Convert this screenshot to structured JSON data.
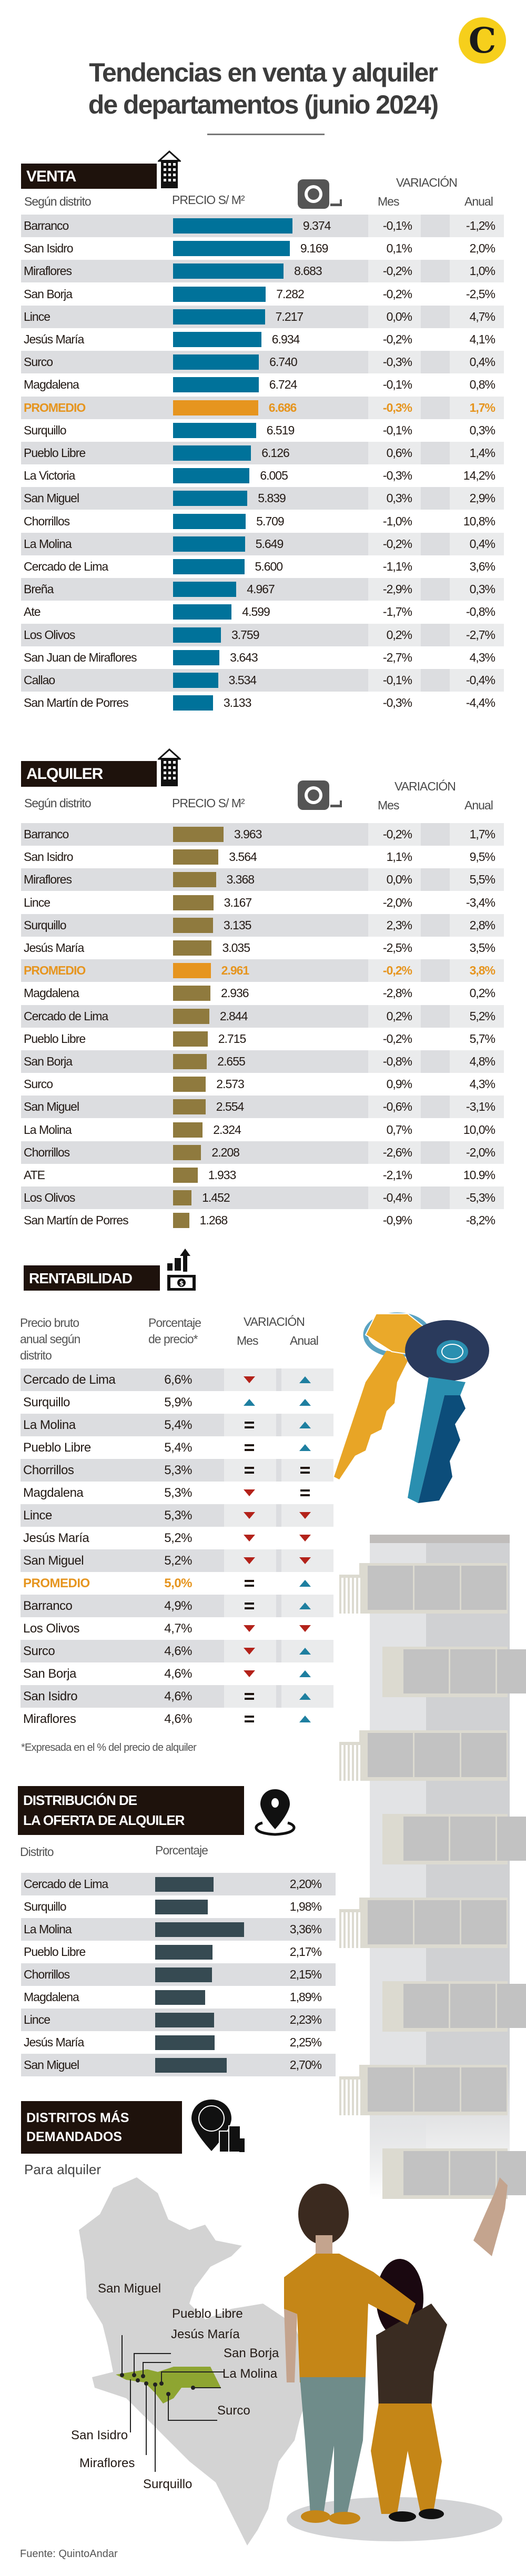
{
  "header": {
    "title_line1": "Tendencias en venta y alquiler",
    "title_line2": "de departamentos (junio 2024)",
    "logo_letter": "C"
  },
  "colors": {
    "venta_bar": "#00729a",
    "alquiler_bar": "#8f7a3e",
    "promedio": "#e6951f",
    "distribucion_bar": "#364a52",
    "up": "#1e7fa0",
    "down": "#b3221a"
  },
  "venta": {
    "title": "VENTA",
    "col_district": "Según distrito",
    "col_price": "PRECIO S/ M²",
    "col_variation": "VARIACIÓN",
    "col_month": "Mes",
    "col_year": "Anual",
    "rows": [
      {
        "district": "Barranco",
        "price": "9.374",
        "mes": "-0,1%",
        "anual": "-1,2%"
      },
      {
        "district": "San Isidro",
        "price": "9.169",
        "mes": "0,1%",
        "anual": "2,0%"
      },
      {
        "district": "Miraflores",
        "price": "8.683",
        "mes": "-0,2%",
        "anual": "1,0%"
      },
      {
        "district": "San Borja",
        "price": "7.282",
        "mes": "-0,2%",
        "anual": "-2,5%"
      },
      {
        "district": "Lince",
        "price": "7.217",
        "mes": "0,0%",
        "anual": "4,7%"
      },
      {
        "district": "Jesús María",
        "price": "6.934",
        "mes": "-0,2%",
        "anual": "4,1%"
      },
      {
        "district": "Surco",
        "price": "6.740",
        "mes": "-0,3%",
        "anual": "0,4%"
      },
      {
        "district": "Magdalena",
        "price": "6.724",
        "mes": "-0,1%",
        "anual": "0,8%"
      },
      {
        "district": "PROMEDIO",
        "price": "6.686",
        "mes": "-0,3%",
        "anual": "1,7%",
        "highlight": true
      },
      {
        "district": "Surquillo",
        "price": "6.519",
        "mes": "-0,1%",
        "anual": "0,3%"
      },
      {
        "district": "Pueblo Libre",
        "price": "6.126",
        "mes": "0,6%",
        "anual": "1,4%"
      },
      {
        "district": "La Victoria",
        "price": "6.005",
        "mes": "-0,3%",
        "anual": "14,2%"
      },
      {
        "district": "San Miguel",
        "price": "5.839",
        "mes": "0,3%",
        "anual": "2,9%"
      },
      {
        "district": "Chorrillos",
        "price": "5.709",
        "mes": "-1,0%",
        "anual": "10,8%"
      },
      {
        "district": "La Molina",
        "price": "5.649",
        "mes": "-0,2%",
        "anual": "0,4%"
      },
      {
        "district": "Cercado de Lima",
        "price": "5.600",
        "mes": "-1,1%",
        "anual": "3,6%"
      },
      {
        "district": "Breña",
        "price": "4.967",
        "mes": "-2,9%",
        "anual": "0,3%"
      },
      {
        "district": "Ate",
        "price": "4.599",
        "mes": "-1,7%",
        "anual": "-0,8%"
      },
      {
        "district": "Los Olivos",
        "price": "3.759",
        "mes": "0,2%",
        "anual": "-2,7%"
      },
      {
        "district": "San Juan de Miraflores",
        "price": "3.643",
        "mes": "-2,7%",
        "anual": "4,3%"
      },
      {
        "district": "Callao",
        "price": "3.534",
        "mes": "-0,1%",
        "anual": "-0,4%"
      },
      {
        "district": "San Martín de Porres",
        "price": "3.133",
        "mes": "-0,3%",
        "anual": "-4,4%"
      }
    ]
  },
  "alquiler": {
    "title": "ALQUILER",
    "col_district": "Según distrito",
    "col_price": "PRECIO S/ M²",
    "col_variation": "VARIACIÓN",
    "col_month": "Mes",
    "col_year": "Anual",
    "rows": [
      {
        "district": "Barranco",
        "price": "3.963",
        "mes": "-0,2%",
        "anual": "1,7%"
      },
      {
        "district": "San Isidro",
        "price": "3.564",
        "mes": "1,1%",
        "anual": "9,5%"
      },
      {
        "district": "Miraflores",
        "price": "3.368",
        "mes": "0,0%",
        "anual": "5,5%"
      },
      {
        "district": "Lince",
        "price": "3.167",
        "mes": "-2,0%",
        "anual": "-3,4%"
      },
      {
        "district": "Surquillo",
        "price": "3.135",
        "mes": "2,3%",
        "anual": "2,8%"
      },
      {
        "district": "Jesús María",
        "price": "3.035",
        "mes": "-2,5%",
        "anual": "3,5%"
      },
      {
        "district": "PROMEDIO",
        "price": "2.961",
        "mes": "-0,2%",
        "anual": "3,8%",
        "highlight": true
      },
      {
        "district": "Magdalena",
        "price": "2.936",
        "mes": "-2,8%",
        "anual": "0,2%"
      },
      {
        "district": "Cercado de Lima",
        "price": "2.844",
        "mes": "0,2%",
        "anual": "5,2%"
      },
      {
        "district": "Pueblo Libre",
        "price": "2.715",
        "mes": "-0,2%",
        "anual": "5,7%"
      },
      {
        "district": "San Borja",
        "price": "2.655",
        "mes": "-0,8%",
        "anual": "4,8%"
      },
      {
        "district": "Surco",
        "price": "2.573",
        "mes": "0,9%",
        "anual": "4,3%"
      },
      {
        "district": "San Miguel",
        "price": "2.554",
        "mes": "-0,6%",
        "anual": "-3,1%"
      },
      {
        "district": "La Molina",
        "price": "2.324",
        "mes": "0,7%",
        "anual": "10,0%"
      },
      {
        "district": "Chorrillos",
        "price": "2.208",
        "mes": "-2,6%",
        "anual": "-2,0%"
      },
      {
        "district": "ATE",
        "price": "1.933",
        "mes": "-2,1%",
        "anual": "10.9%"
      },
      {
        "district": "Los Olivos",
        "price": "1.452",
        "mes": "-0,4%",
        "anual": "-5,3%"
      },
      {
        "district": "San Martín de Porres",
        "price": "1.268",
        "mes": "-0,9%",
        "anual": "-8,2%"
      }
    ]
  },
  "rentabilidad": {
    "title": "RENTABILIDAD",
    "col_district_1": "Precio bruto",
    "col_district_2": "anual según",
    "col_district_3": "distrito",
    "col_pct_1": "Porcentaje",
    "col_pct_2": "de precio*",
    "col_variation": "VARIACIÓN",
    "col_month": "Mes",
    "col_year": "Anual",
    "footnote": "*Expresada en el % del precio de alquiler",
    "rows": [
      {
        "district": "Cercado de Lima",
        "pct": "6,6%",
        "mes": "down",
        "anual": "up"
      },
      {
        "district": "Surquillo",
        "pct": "5,9%",
        "mes": "up",
        "anual": "up"
      },
      {
        "district": "La Molina",
        "pct": "5,4%",
        "mes": "eq",
        "anual": "up"
      },
      {
        "district": "Pueblo Libre",
        "pct": "5,4%",
        "mes": "eq",
        "anual": "up"
      },
      {
        "district": "Chorrillos",
        "pct": "5,3%",
        "mes": "eq",
        "anual": "eq"
      },
      {
        "district": "Magdalena",
        "pct": "5,3%",
        "mes": "down",
        "anual": "eq"
      },
      {
        "district": "Lince",
        "pct": "5,3%",
        "mes": "down",
        "anual": "down"
      },
      {
        "district": "Jesús María",
        "pct": "5,2%",
        "mes": "down",
        "anual": "down"
      },
      {
        "district": "San Miguel",
        "pct": "5,2%",
        "mes": "down",
        "anual": "down"
      },
      {
        "district": "PROMEDIO",
        "pct": "5,0%",
        "mes": "eq",
        "anual": "up",
        "highlight": true
      },
      {
        "district": "Barranco",
        "pct": "4,9%",
        "mes": "eq",
        "anual": "up"
      },
      {
        "district": "Los Olivos",
        "pct": "4,7%",
        "mes": "down",
        "anual": "down"
      },
      {
        "district": "Surco",
        "pct": "4,6%",
        "mes": "down",
        "anual": "up"
      },
      {
        "district": "San Borja",
        "pct": "4,6%",
        "mes": "down",
        "anual": "up"
      },
      {
        "district": "San Isidro",
        "pct": "4,6%",
        "mes": "eq",
        "anual": "up"
      },
      {
        "district": "Miraflores",
        "pct": "4,6%",
        "mes": "eq",
        "anual": "up"
      }
    ]
  },
  "distribucion": {
    "title_1": "DISTRIBUCIÓN DE",
    "title_2": "LA OFERTA DE ALQUILER",
    "col_district": "Distrito",
    "col_pct": "Porcentaje",
    "rows": [
      {
        "district": "Cercado de Lima",
        "pct": "2,20%"
      },
      {
        "district": "Surquillo",
        "pct": "1,98%"
      },
      {
        "district": "La Molina",
        "pct": "3,36%"
      },
      {
        "district": "Pueblo Libre",
        "pct": "2,17%"
      },
      {
        "district": "Chorrillos",
        "pct": "2,15%"
      },
      {
        "district": "Magdalena",
        "pct": "1,89%"
      },
      {
        "district": "Lince",
        "pct": "2,23%"
      },
      {
        "district": "Jesús María",
        "pct": "2,25%"
      },
      {
        "district": "San Miguel",
        "pct": "2,70%"
      }
    ]
  },
  "demandados": {
    "title_1": "DISTRITOS MÁS",
    "title_2": "DEMANDADOS",
    "subtitle": "Para alquiler",
    "map_labels": [
      "San Miguel",
      "Pueblo Libre",
      "Jesús María",
      "San Borja",
      "La Molina",
      "Surco",
      "San Isidro",
      "Miraflores",
      "Surquillo"
    ]
  },
  "source": "Fuente: QuintoAndar",
  "chart_data": [
    {
      "type": "bar",
      "title": "VENTA - Precio S/ m² según distrito",
      "categories": [
        "Barranco",
        "San Isidro",
        "Miraflores",
        "San Borja",
        "Lince",
        "Jesús María",
        "Surco",
        "Magdalena",
        "PROMEDIO",
        "Surquillo",
        "Pueblo Libre",
        "La Victoria",
        "San Miguel",
        "Chorrillos",
        "La Molina",
        "Cercado de Lima",
        "Breña",
        "Ate",
        "Los Olivos",
        "San Juan de Miraflores",
        "Callao",
        "San Martín de Porres"
      ],
      "values": [
        9374,
        9169,
        8683,
        7282,
        7217,
        6934,
        6740,
        6724,
        6686,
        6519,
        6126,
        6005,
        5839,
        5709,
        5649,
        5600,
        4967,
        4599,
        3759,
        3643,
        3534,
        3133
      ]
    },
    {
      "type": "bar",
      "title": "ALQUILER - Precio S/ m² según distrito",
      "categories": [
        "Barranco",
        "San Isidro",
        "Miraflores",
        "Lince",
        "Surquillo",
        "Jesús María",
        "PROMEDIO",
        "Magdalena",
        "Cercado de Lima",
        "Pueblo Libre",
        "San Borja",
        "Surco",
        "San Miguel",
        "La Molina",
        "Chorrillos",
        "ATE",
        "Los Olivos",
        "San Martín de Porres"
      ],
      "values": [
        3963,
        3564,
        3368,
        3167,
        3135,
        3035,
        2961,
        2936,
        2844,
        2715,
        2655,
        2573,
        2554,
        2324,
        2208,
        1933,
        1452,
        1268
      ]
    },
    {
      "type": "bar",
      "title": "Distribución de la oferta de alquiler (%)",
      "categories": [
        "Cercado de Lima",
        "Surquillo",
        "La Molina",
        "Pueblo Libre",
        "Chorrillos",
        "Magdalena",
        "Lince",
        "Jesús María",
        "San Miguel"
      ],
      "values": [
        2.2,
        1.98,
        3.36,
        2.17,
        2.15,
        1.89,
        2.23,
        2.25,
        2.7
      ]
    }
  ]
}
